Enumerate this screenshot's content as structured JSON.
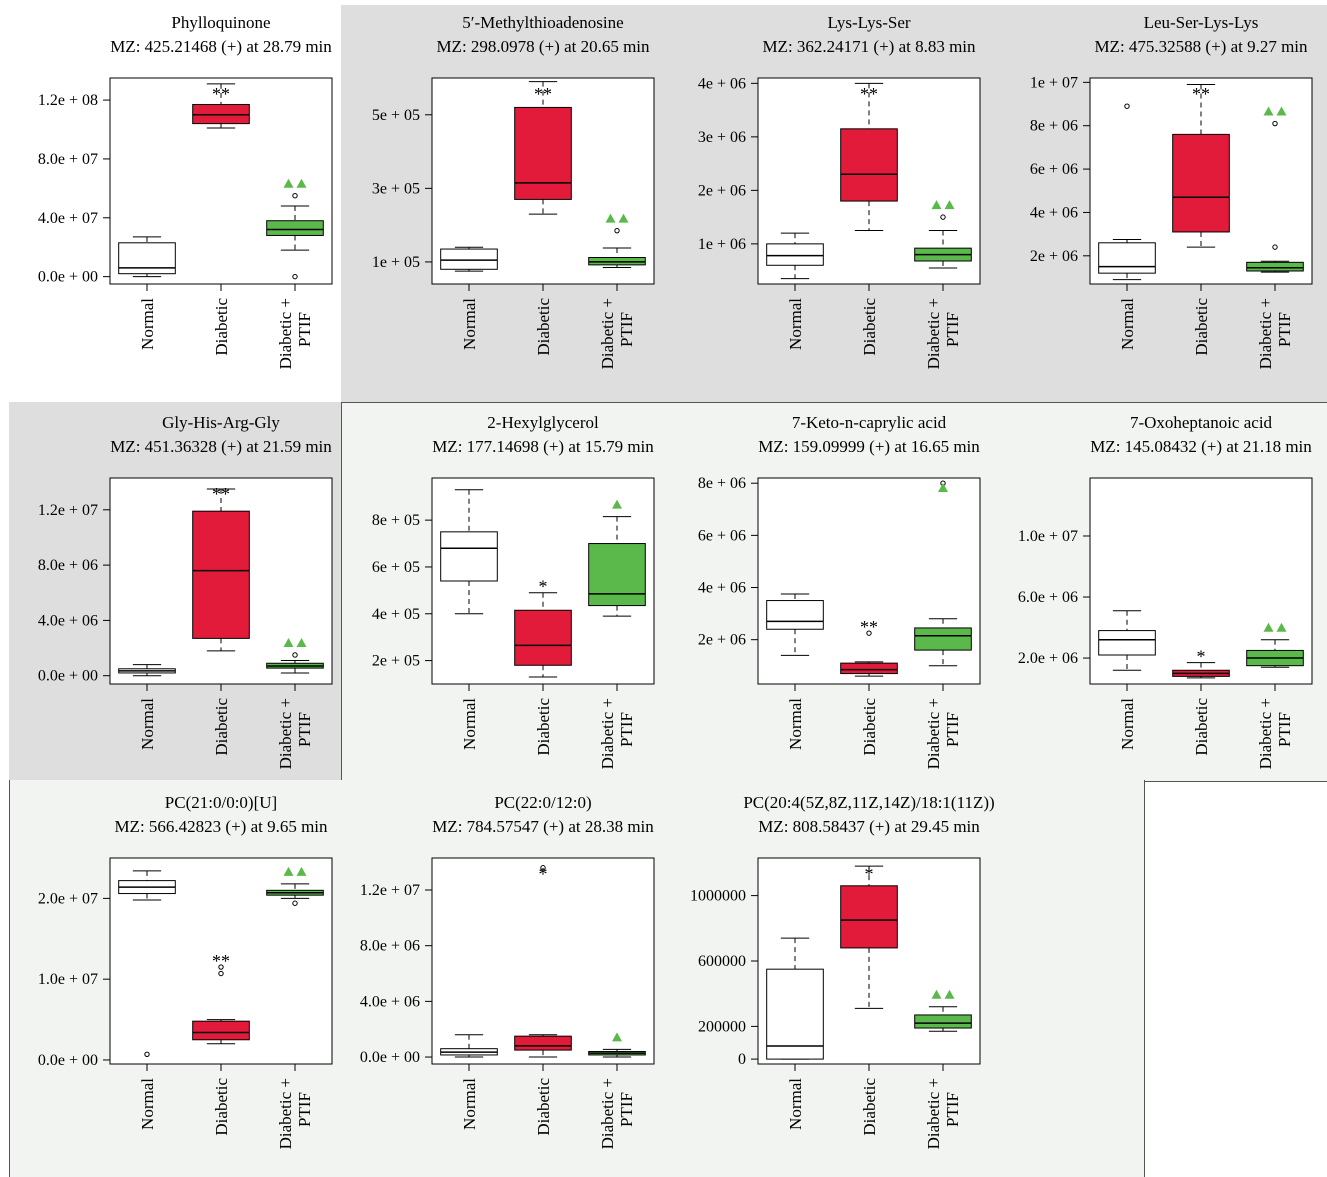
{
  "colors": {
    "normal": "#ffffff",
    "diabetic": "#e31b3a",
    "treated": "#5bb94b",
    "marker": "#5bb94b",
    "panel_gray": "#dedede",
    "panel_light": "#f2f4f2"
  },
  "chart_data": [
    {
      "type": "box",
      "title": "Phylloquinone",
      "subtitle": "MZ: 425.21468 (+) at 28.79 min",
      "categories": [
        "Normal",
        "Diabetic",
        "Diabetic + PTIF"
      ],
      "ylim": [
        -5000000,
        135000000
      ],
      "yticks": [
        {
          "v": 0,
          "label": "0.0e + 00"
        },
        {
          "v": 40000000,
          "label": "4.0e + 07"
        },
        {
          "v": 80000000,
          "label": "8.0e + 07"
        },
        {
          "v": 120000000,
          "label": "1.2e + 08"
        }
      ],
      "boxes": [
        {
          "min": 0,
          "q1": 2000000,
          "median": 6000000,
          "q3": 23000000,
          "max": 27000000,
          "outliers": []
        },
        {
          "min": 101000000,
          "q1": 104000000,
          "median": 110000000,
          "q3": 117000000,
          "max": 131000000,
          "outliers": []
        },
        {
          "min": 18000000,
          "q1": 28000000,
          "median": 32000000,
          "q3": 38000000,
          "max": 48000000,
          "outliers": [
            55000000,
            0
          ]
        }
      ],
      "sig": [
        "",
        "**",
        "▲▲"
      ]
    },
    {
      "type": "box",
      "title": "5′-Methylthioadenosine",
      "subtitle": "MZ: 298.0978 (+) at 20.65 min",
      "categories": [
        "Normal",
        "Diabetic",
        "Diabetic + PTIF"
      ],
      "ylim": [
        40000,
        600000
      ],
      "yticks": [
        {
          "v": 100000,
          "label": "1e + 05"
        },
        {
          "v": 300000,
          "label": "3e + 05"
        },
        {
          "v": 500000,
          "label": "5e + 05"
        }
      ],
      "boxes": [
        {
          "min": 75000,
          "q1": 80000,
          "median": 105000,
          "q3": 135000,
          "max": 140000,
          "outliers": []
        },
        {
          "min": 230000,
          "q1": 270000,
          "median": 315000,
          "q3": 520000,
          "max": 590000,
          "outliers": []
        },
        {
          "min": 85000,
          "q1": 92000,
          "median": 100000,
          "q3": 112000,
          "max": 138000,
          "outliers": [
            185000
          ]
        }
      ],
      "sig": [
        "",
        "**",
        "▲▲"
      ]
    },
    {
      "type": "box",
      "title": "Lys-Lys-Ser",
      "subtitle": "MZ: 362.24171 (+) at 8.83 min",
      "categories": [
        "Normal",
        "Diabetic",
        "Diabetic + PTIF"
      ],
      "ylim": [
        250000,
        4100000
      ],
      "yticks": [
        {
          "v": 1000000,
          "label": "1e + 06"
        },
        {
          "v": 2000000,
          "label": "2e + 06"
        },
        {
          "v": 3000000,
          "label": "3e + 06"
        },
        {
          "v": 4000000,
          "label": "4e + 06"
        }
      ],
      "boxes": [
        {
          "min": 350000,
          "q1": 600000,
          "median": 780000,
          "q3": 1000000,
          "max": 1200000,
          "outliers": []
        },
        {
          "min": 1250000,
          "q1": 1800000,
          "median": 2300000,
          "q3": 3150000,
          "max": 4000000,
          "outliers": []
        },
        {
          "min": 550000,
          "q1": 680000,
          "median": 800000,
          "q3": 920000,
          "max": 1250000,
          "outliers": [
            1500000
          ]
        }
      ],
      "sig": [
        "",
        "**",
        "▲▲"
      ]
    },
    {
      "type": "box",
      "title": "Leu-Ser-Lys-Lys",
      "subtitle": "MZ: 475.32588 (+) at 9.27 min",
      "categories": [
        "Normal",
        "Diabetic",
        "Diabetic + PTIF"
      ],
      "ylim": [
        700000,
        10200000
      ],
      "yticks": [
        {
          "v": 2000000,
          "label": "2e + 06"
        },
        {
          "v": 4000000,
          "label": "4e + 06"
        },
        {
          "v": 6000000,
          "label": "6e + 06"
        },
        {
          "v": 8000000,
          "label": "8e + 06"
        },
        {
          "v": 10000000,
          "label": "1e + 07"
        }
      ],
      "boxes": [
        {
          "min": 900000,
          "q1": 1200000,
          "median": 1500000,
          "q3": 2600000,
          "max": 2750000,
          "outliers": [
            8900000
          ]
        },
        {
          "min": 2400000,
          "q1": 3100000,
          "median": 4700000,
          "q3": 7600000,
          "max": 9900000,
          "outliers": []
        },
        {
          "min": 1250000,
          "q1": 1300000,
          "median": 1450000,
          "q3": 1700000,
          "max": 1750000,
          "outliers": [
            2400000,
            8100000
          ]
        }
      ],
      "sig": [
        "",
        "**",
        "▲▲"
      ]
    },
    {
      "type": "box",
      "title": "Gly-His-Arg-Gly",
      "subtitle": "MZ: 451.36328 (+) at 21.59 min",
      "categories": [
        "Normal",
        "Diabetic",
        "Diabetic + PTIF"
      ],
      "ylim": [
        -600000,
        14300000
      ],
      "yticks": [
        {
          "v": 0,
          "label": "0.0e + 00"
        },
        {
          "v": 4000000,
          "label": "4.0e + 06"
        },
        {
          "v": 8000000,
          "label": "8.0e + 06"
        },
        {
          "v": 12000000,
          "label": "1.2e + 07"
        }
      ],
      "boxes": [
        {
          "min": 0,
          "q1": 200000,
          "median": 350000,
          "q3": 500000,
          "max": 800000,
          "outliers": []
        },
        {
          "min": 1800000,
          "q1": 2700000,
          "median": 7600000,
          "q3": 11900000,
          "max": 13500000,
          "outliers": []
        },
        {
          "min": 200000,
          "q1": 550000,
          "median": 700000,
          "q3": 900000,
          "max": 1100000,
          "outliers": [
            1500000
          ]
        }
      ],
      "sig": [
        "",
        "**",
        "▲▲"
      ]
    },
    {
      "type": "box",
      "title": "2-Hexylglycerol",
      "subtitle": "MZ: 177.14698 (+) at 15.79 min",
      "categories": [
        "Normal",
        "Diabetic",
        "Diabetic + PTIF"
      ],
      "ylim": [
        100000,
        980000
      ],
      "yticks": [
        {
          "v": 200000,
          "label": "2e + 05"
        },
        {
          "v": 400000,
          "label": "4e + 05"
        },
        {
          "v": 600000,
          "label": "6e + 05"
        },
        {
          "v": 800000,
          "label": "8e + 05"
        }
      ],
      "boxes": [
        {
          "min": 400000,
          "q1": 540000,
          "median": 680000,
          "q3": 750000,
          "max": 930000,
          "outliers": []
        },
        {
          "min": 130000,
          "q1": 180000,
          "median": 265000,
          "q3": 415000,
          "max": 490000,
          "outliers": []
        },
        {
          "min": 390000,
          "q1": 435000,
          "median": 485000,
          "q3": 700000,
          "max": 815000,
          "outliers": []
        }
      ],
      "sig": [
        "",
        "*",
        "▲"
      ]
    },
    {
      "type": "box",
      "title": "7-Keto-n-caprylic acid",
      "subtitle": "MZ: 159.09999 (+) at 16.65 min",
      "categories": [
        "Normal",
        "Diabetic",
        "Diabetic + PTIF"
      ],
      "ylim": [
        300000,
        8200000
      ],
      "yticks": [
        {
          "v": 2000000,
          "label": "2e + 06"
        },
        {
          "v": 4000000,
          "label": "4e + 06"
        },
        {
          "v": 6000000,
          "label": "6e + 06"
        },
        {
          "v": 8000000,
          "label": "8e + 06"
        }
      ],
      "boxes": [
        {
          "min": 1400000,
          "q1": 2400000,
          "median": 2700000,
          "q3": 3500000,
          "max": 3750000,
          "outliers": []
        },
        {
          "min": 600000,
          "q1": 700000,
          "median": 850000,
          "q3": 1100000,
          "max": 1150000,
          "outliers": [
            2250000
          ]
        },
        {
          "min": 1000000,
          "q1": 1600000,
          "median": 2150000,
          "q3": 2450000,
          "max": 2800000,
          "outliers": [
            8000000
          ]
        }
      ],
      "sig": [
        "",
        "**",
        "▲"
      ]
    },
    {
      "type": "box",
      "title": "7-Oxoheptanoic acid",
      "subtitle": "MZ: 145.08432 (+) at 21.18 min",
      "categories": [
        "Normal",
        "Diabetic",
        "Diabetic + PTIF"
      ],
      "ylim": [
        300000,
        13800000
      ],
      "yticks": [
        {
          "v": 2000000,
          "label": "2.0e + 06"
        },
        {
          "v": 6000000,
          "label": "6.0e + 06"
        },
        {
          "v": 10000000,
          "label": "1.0e + 07"
        }
      ],
      "boxes": [
        {
          "min": 1200000,
          "q1": 2200000,
          "median": 3200000,
          "q3": 3800000,
          "max": 5100000,
          "outliers": []
        },
        {
          "min": 700000,
          "q1": 800000,
          "median": 1000000,
          "q3": 1200000,
          "max": 1700000,
          "outliers": []
        },
        {
          "min": 1400000,
          "q1": 1500000,
          "median": 2000000,
          "q3": 2500000,
          "max": 3200000,
          "outliers": []
        }
      ],
      "sig": [
        "",
        "*",
        "▲▲"
      ]
    },
    {
      "type": "box",
      "title": "PC(21:0/0:0)[U]",
      "subtitle": "MZ: 566.42823 (+) at 9.65 min",
      "categories": [
        "Normal",
        "Diabetic",
        "Diabetic + PTIF"
      ],
      "ylim": [
        -500000,
        25000000
      ],
      "yticks": [
        {
          "v": 0,
          "label": "0.0e + 00"
        },
        {
          "v": 10000000,
          "label": "1.0e + 07"
        },
        {
          "v": 20000000,
          "label": "2.0e + 07"
        }
      ],
      "boxes": [
        {
          "min": 19800000,
          "q1": 20600000,
          "median": 21400000,
          "q3": 22200000,
          "max": 23400000,
          "outliers": [
            700000
          ]
        },
        {
          "min": 2000000,
          "q1": 2500000,
          "median": 3400000,
          "q3": 4800000,
          "max": 5000000,
          "outliers": [
            10700000,
            11500000
          ]
        },
        {
          "min": 20000000,
          "q1": 20400000,
          "median": 20700000,
          "q3": 21000000,
          "max": 21800000,
          "outliers": [
            19400000
          ]
        }
      ],
      "sig": [
        "",
        "**",
        "▲▲"
      ]
    },
    {
      "type": "box",
      "title": "PC(22:0/12:0)",
      "subtitle": "MZ: 784.57547 (+) at 28.38 min",
      "categories": [
        "Normal",
        "Diabetic",
        "Diabetic + PTIF"
      ],
      "ylim": [
        -500000,
        14300000
      ],
      "yticks": [
        {
          "v": 0,
          "label": "0.0e + 00"
        },
        {
          "v": 4000000,
          "label": "4.0e + 06"
        },
        {
          "v": 8000000,
          "label": "8.0e + 06"
        },
        {
          "v": 12000000,
          "label": "1.2e + 07"
        }
      ],
      "boxes": [
        {
          "min": 0,
          "q1": 150000,
          "median": 350000,
          "q3": 600000,
          "max": 1600000,
          "outliers": []
        },
        {
          "min": 0,
          "q1": 500000,
          "median": 800000,
          "q3": 1500000,
          "max": 1600000,
          "outliers": [
            13600000
          ]
        },
        {
          "min": 0,
          "q1": 150000,
          "median": 280000,
          "q3": 400000,
          "max": 550000,
          "outliers": []
        }
      ],
      "sig": [
        "",
        "*",
        "▲"
      ]
    },
    {
      "type": "box",
      "title": "PC(20:4(5Z,8Z,11Z,14Z)/18:1(11Z))",
      "subtitle": "MZ: 808.58437 (+) at 29.45 min",
      "categories": [
        "Normal",
        "Diabetic",
        "Diabetic + PTIF"
      ],
      "ylim": [
        -30000,
        1230000
      ],
      "yticks": [
        {
          "v": 0,
          "label": "0"
        },
        {
          "v": 200000,
          "label": "200000"
        },
        {
          "v": 600000,
          "label": "600000"
        },
        {
          "v": 1000000,
          "label": "1000000"
        }
      ],
      "boxes": [
        {
          "min": 0,
          "q1": 0,
          "median": 80000,
          "q3": 550000,
          "max": 740000,
          "outliers": []
        },
        {
          "min": 310000,
          "q1": 680000,
          "median": 850000,
          "q3": 1060000,
          "max": 1180000,
          "outliers": []
        },
        {
          "min": 170000,
          "q1": 190000,
          "median": 220000,
          "q3": 270000,
          "max": 320000,
          "outliers": []
        }
      ],
      "sig": [
        "",
        "*",
        "▲▲"
      ]
    }
  ]
}
